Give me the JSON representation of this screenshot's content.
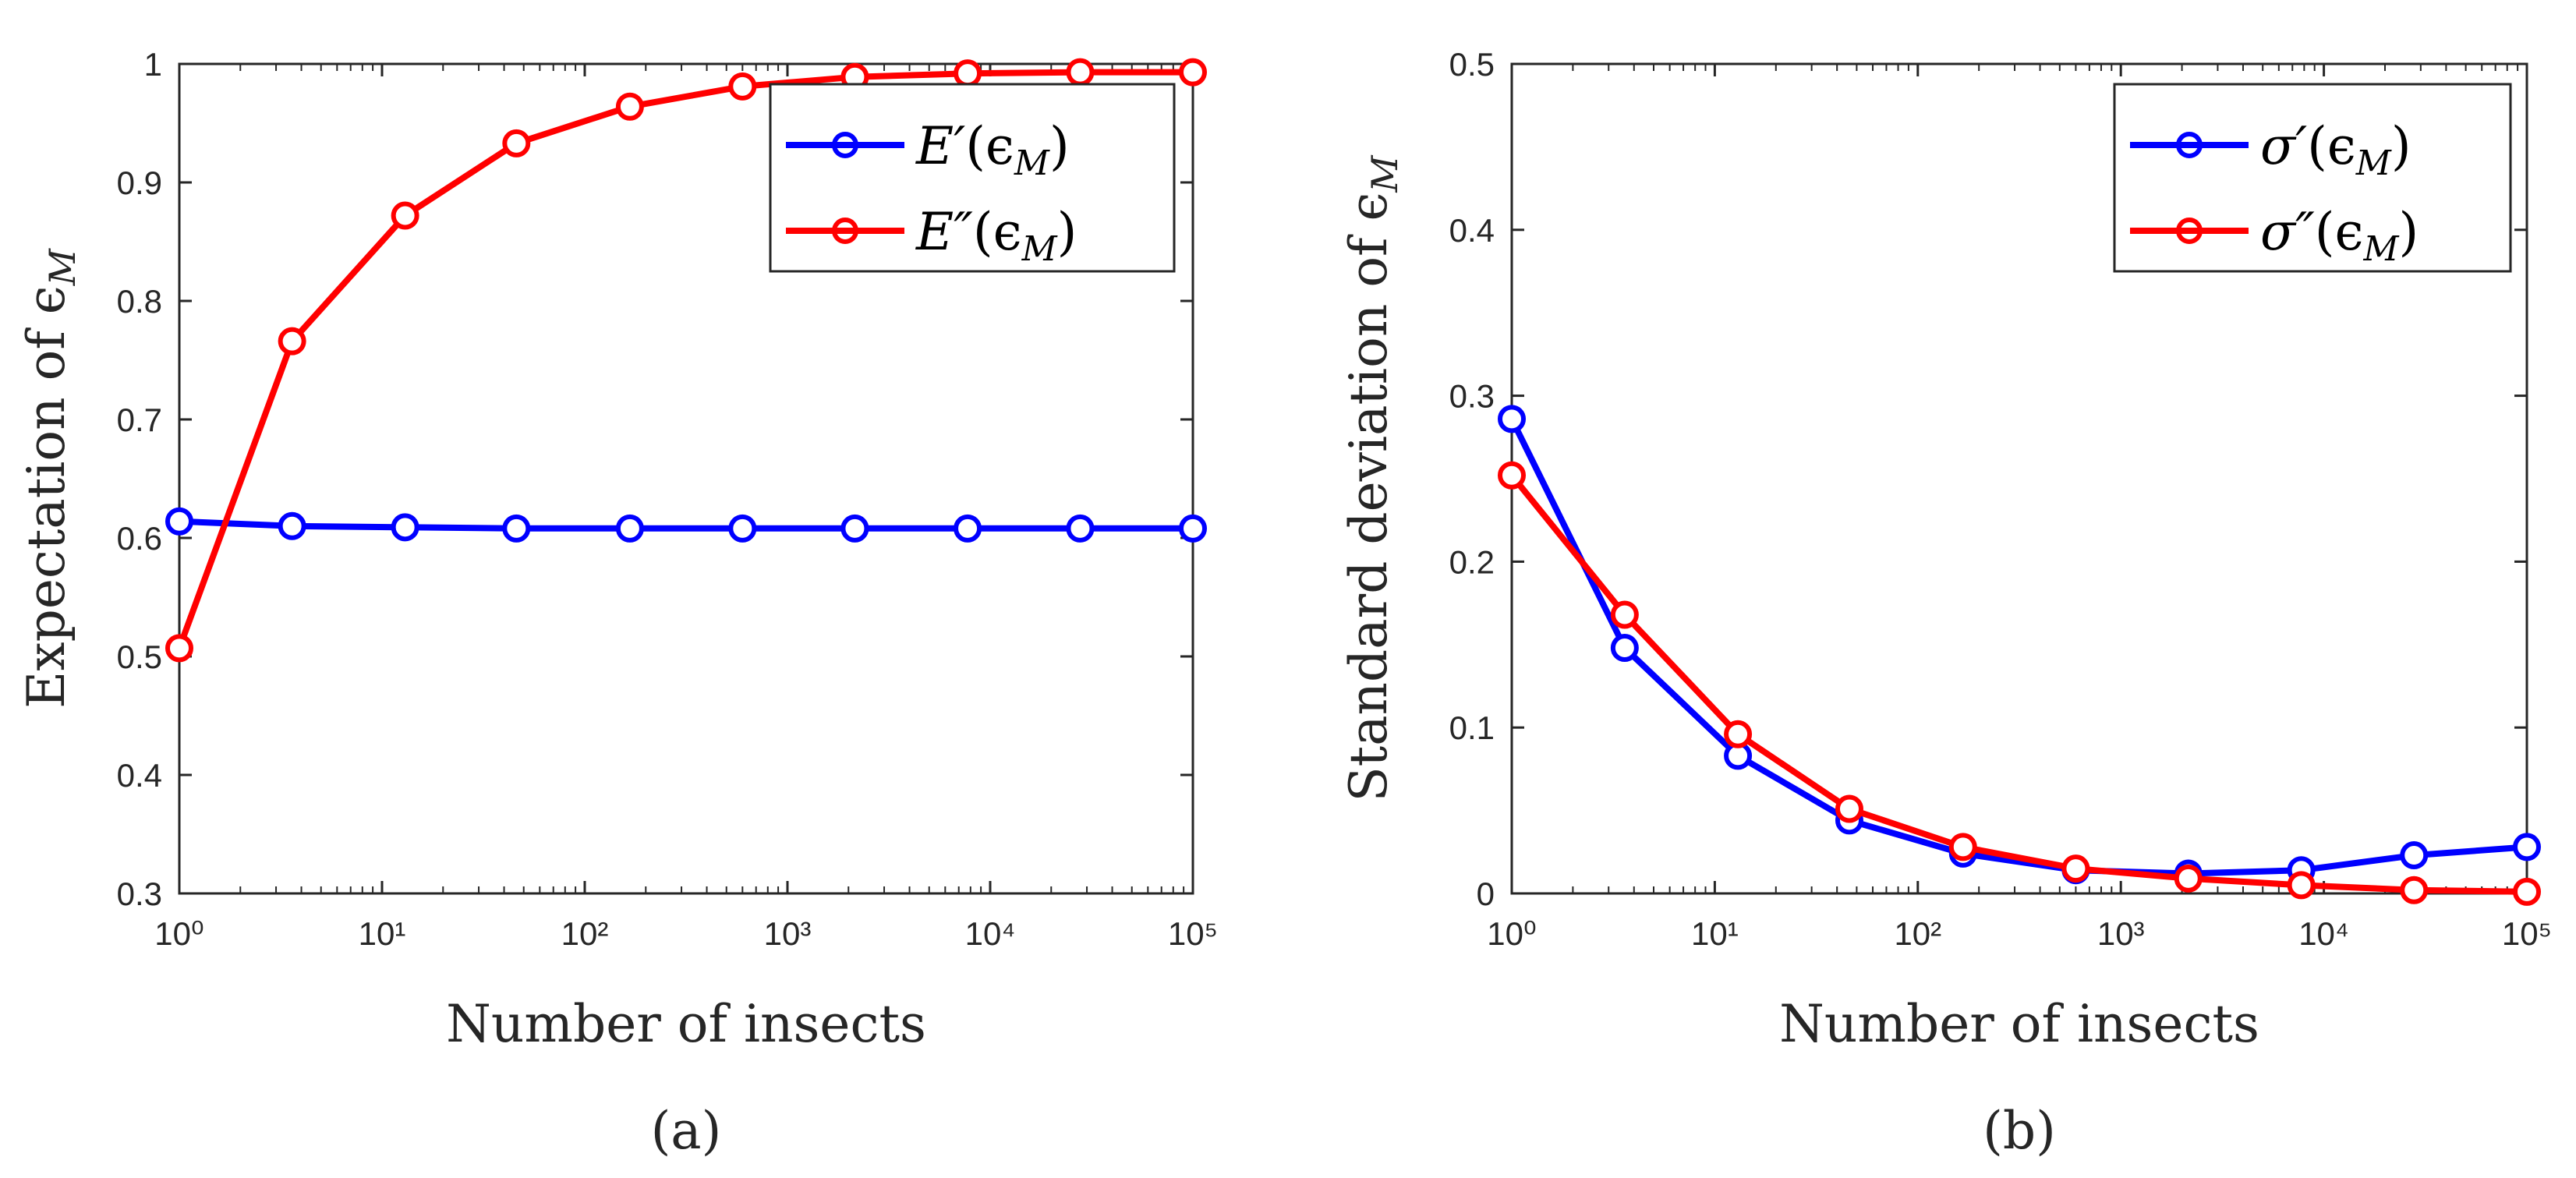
{
  "chart_data": [
    {
      "type": "line",
      "panel_label": "(a)",
      "xlabel": "Number of insects",
      "ylabel": "Expectation of ϵM",
      "xscale": "log",
      "xlim": [
        1,
        100000
      ],
      "ylim": [
        0.3,
        1.0
      ],
      "xtick_labels": [
        "10⁰",
        "10¹",
        "10²",
        "10³",
        "10⁴",
        "10⁵"
      ],
      "ytick_labels": [
        "0.3",
        "0.4",
        "0.5",
        "0.6",
        "0.7",
        "0.8",
        "0.9",
        "1"
      ],
      "grid": false,
      "legend_position": "top-right",
      "x": [
        1,
        3.6,
        13,
        46,
        167,
        600,
        2150,
        7740,
        27800,
        100000
      ],
      "series": [
        {
          "name": "E′(ϵM)",
          "color": "#0000ff",
          "values": [
            0.614,
            0.61,
            0.609,
            0.608,
            0.608,
            0.608,
            0.608,
            0.608,
            0.608,
            0.608
          ]
        },
        {
          "name": "E″(ϵM)",
          "color": "#ff0000",
          "values": [
            0.507,
            0.766,
            0.872,
            0.933,
            0.964,
            0.981,
            0.989,
            0.992,
            0.993,
            0.993
          ]
        }
      ]
    },
    {
      "type": "line",
      "panel_label": "(b)",
      "xlabel": "Number of insects",
      "ylabel": "Standard deviation of ϵM",
      "xscale": "log",
      "xlim": [
        1,
        100000
      ],
      "ylim": [
        0,
        0.5
      ],
      "xtick_labels": [
        "10⁰",
        "10¹",
        "10²",
        "10³",
        "10⁴",
        "10⁵"
      ],
      "ytick_labels": [
        "0",
        "0.1",
        "0.2",
        "0.3",
        "0.4",
        "0.5"
      ],
      "grid": false,
      "legend_position": "top-right",
      "x": [
        1,
        3.6,
        13,
        46,
        167,
        600,
        2150,
        7740,
        27800,
        100000
      ],
      "series": [
        {
          "name": "σ′(ϵM)",
          "color": "#0000ff",
          "values": [
            0.286,
            0.148,
            0.083,
            0.044,
            0.024,
            0.014,
            0.012,
            0.014,
            0.023,
            0.028
          ]
        },
        {
          "name": "σ″(ϵM)",
          "color": "#ff0000",
          "values": [
            0.252,
            0.168,
            0.096,
            0.051,
            0.028,
            0.015,
            0.009,
            0.005,
            0.002,
            0.001
          ]
        }
      ]
    }
  ],
  "legends": [
    {
      "entries": [
        {
          "sym": "E",
          "prime": "′",
          "arg": "(ϵ",
          "sub": "M",
          "close": ")"
        },
        {
          "sym": "E",
          "prime": "″",
          "arg": "(ϵ",
          "sub": "M",
          "close": ")"
        }
      ]
    },
    {
      "entries": [
        {
          "sym": "σ",
          "prime": "′",
          "arg": "(ϵ",
          "sub": "M",
          "close": ")"
        },
        {
          "sym": "σ",
          "prime": "″",
          "arg": "(ϵ",
          "sub": "M",
          "close": ")"
        }
      ]
    }
  ],
  "ylabel_parts": [
    {
      "text": "Expectation of ϵ",
      "sub": "M"
    },
    {
      "text": "Standard deviation of ϵ",
      "sub": "M"
    }
  ]
}
